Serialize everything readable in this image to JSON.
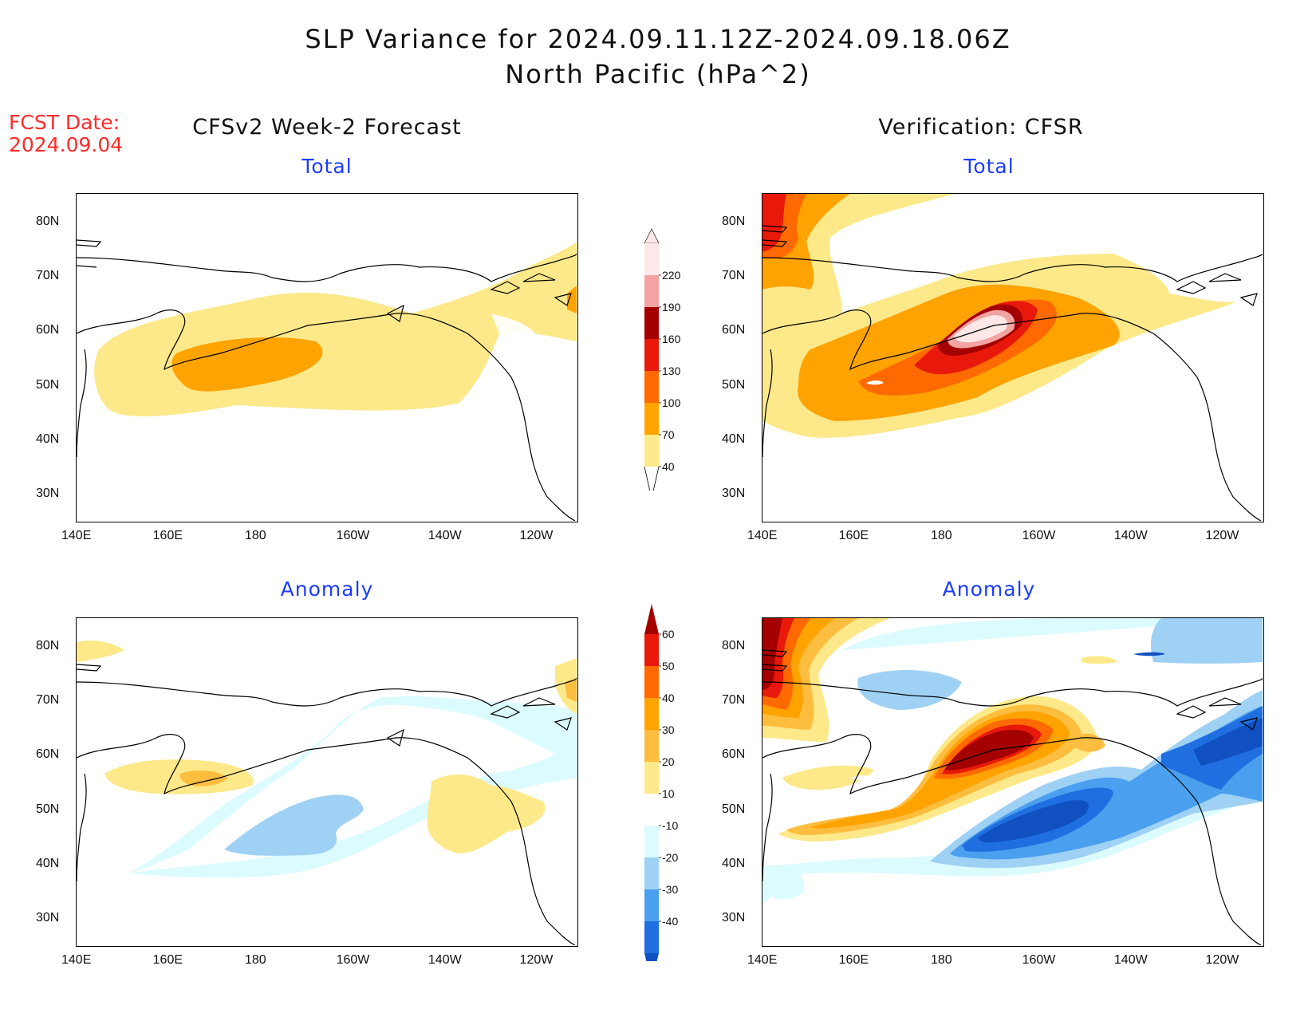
{
  "header": {
    "title_line1": "SLP Variance for 2024.09.11.12Z-2024.09.18.06Z",
    "title_line2": "North Pacific (hPa^2)"
  },
  "forecast_date": {
    "label": "FCST Date:",
    "value": "2024.09.04"
  },
  "columns": {
    "left_title": "CFSv2 Week-2 Forecast",
    "right_title": "Verification: CFSR"
  },
  "panels": {
    "top_left_title": "Total",
    "top_right_title": "Total",
    "bottom_left_title": "Anomaly",
    "bottom_right_title": "Anomaly"
  },
  "axes": {
    "lat_labels": [
      "80N",
      "70N",
      "60N",
      "50N",
      "40N",
      "30N"
    ],
    "lon_labels": [
      "140E",
      "160E",
      "180",
      "160W",
      "140W",
      "120W"
    ]
  },
  "colorbars": {
    "total": {
      "levels": [
        "40",
        "70",
        "100",
        "130",
        "160",
        "190",
        "220"
      ],
      "colors": [
        "#fde98a",
        "#ffa300",
        "#ff6a00",
        "#e8190b",
        "#a40000",
        "#f4a3a3",
        "#fde7e7"
      ]
    },
    "anomaly": {
      "levels": [
        "60",
        "50",
        "40",
        "30",
        "20",
        "10",
        "-10",
        "-20",
        "-30",
        "-40"
      ],
      "colors": [
        "#a40000",
        "#e8190b",
        "#ff6a00",
        "#ffa300",
        "#fdbd3e",
        "#fde98a",
        "#ffffff",
        "#dcfbff",
        "#9fd1f5",
        "#4aa0ee",
        "#1f6fe0",
        "#1050c0"
      ]
    }
  },
  "palette": {
    "total_40": "#fde98a",
    "total_70": "#ffa300",
    "total_100": "#ff6a00",
    "total_130": "#e8190b",
    "total_160": "#a40000",
    "total_190": "#f4a3a3",
    "total_220": "#fde7e7",
    "anom_pos10": "#fde98a",
    "anom_pos20": "#fdbd3e",
    "anom_pos30": "#ffa300",
    "anom_pos40": "#ff6a00",
    "anom_pos50": "#e8190b",
    "anom_pos60": "#a40000",
    "anom_neg10": "#dcfbff",
    "anom_neg20": "#9fd1f5",
    "anom_neg30": "#4aa0ee",
    "anom_neg40": "#1f6fe0",
    "anom_neg50": "#1050c0"
  }
}
